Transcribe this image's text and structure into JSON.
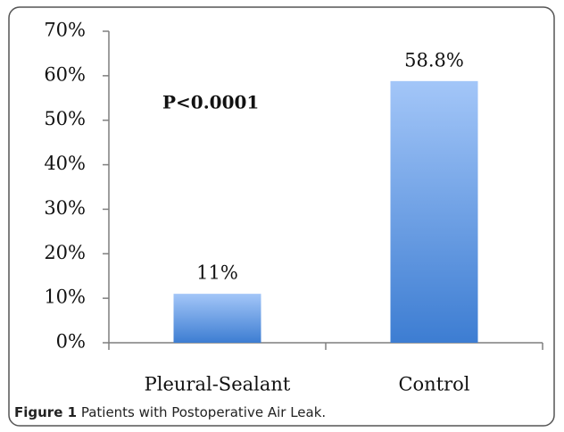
{
  "chart_data": {
    "type": "bar",
    "categories": [
      "Pleural-Sealant",
      "Control"
    ],
    "values": [
      11,
      58.8
    ],
    "value_labels": [
      "11%",
      "58.8%"
    ],
    "ylim": [
      0,
      70
    ],
    "yticks": [
      {
        "value": 0,
        "label": "0%"
      },
      {
        "value": 10,
        "label": "10%"
      },
      {
        "value": 20,
        "label": "20%"
      },
      {
        "value": 30,
        "label": "30%"
      },
      {
        "value": 40,
        "label": "40%"
      },
      {
        "value": 50,
        "label": "50%"
      },
      {
        "value": 60,
        "label": "60%"
      },
      {
        "value": 70,
        "label": "70%"
      }
    ],
    "annotation": "P<0.0001",
    "caption_label": "Figure 1",
    "caption_text": "Patients with Postoperative Air Leak."
  }
}
